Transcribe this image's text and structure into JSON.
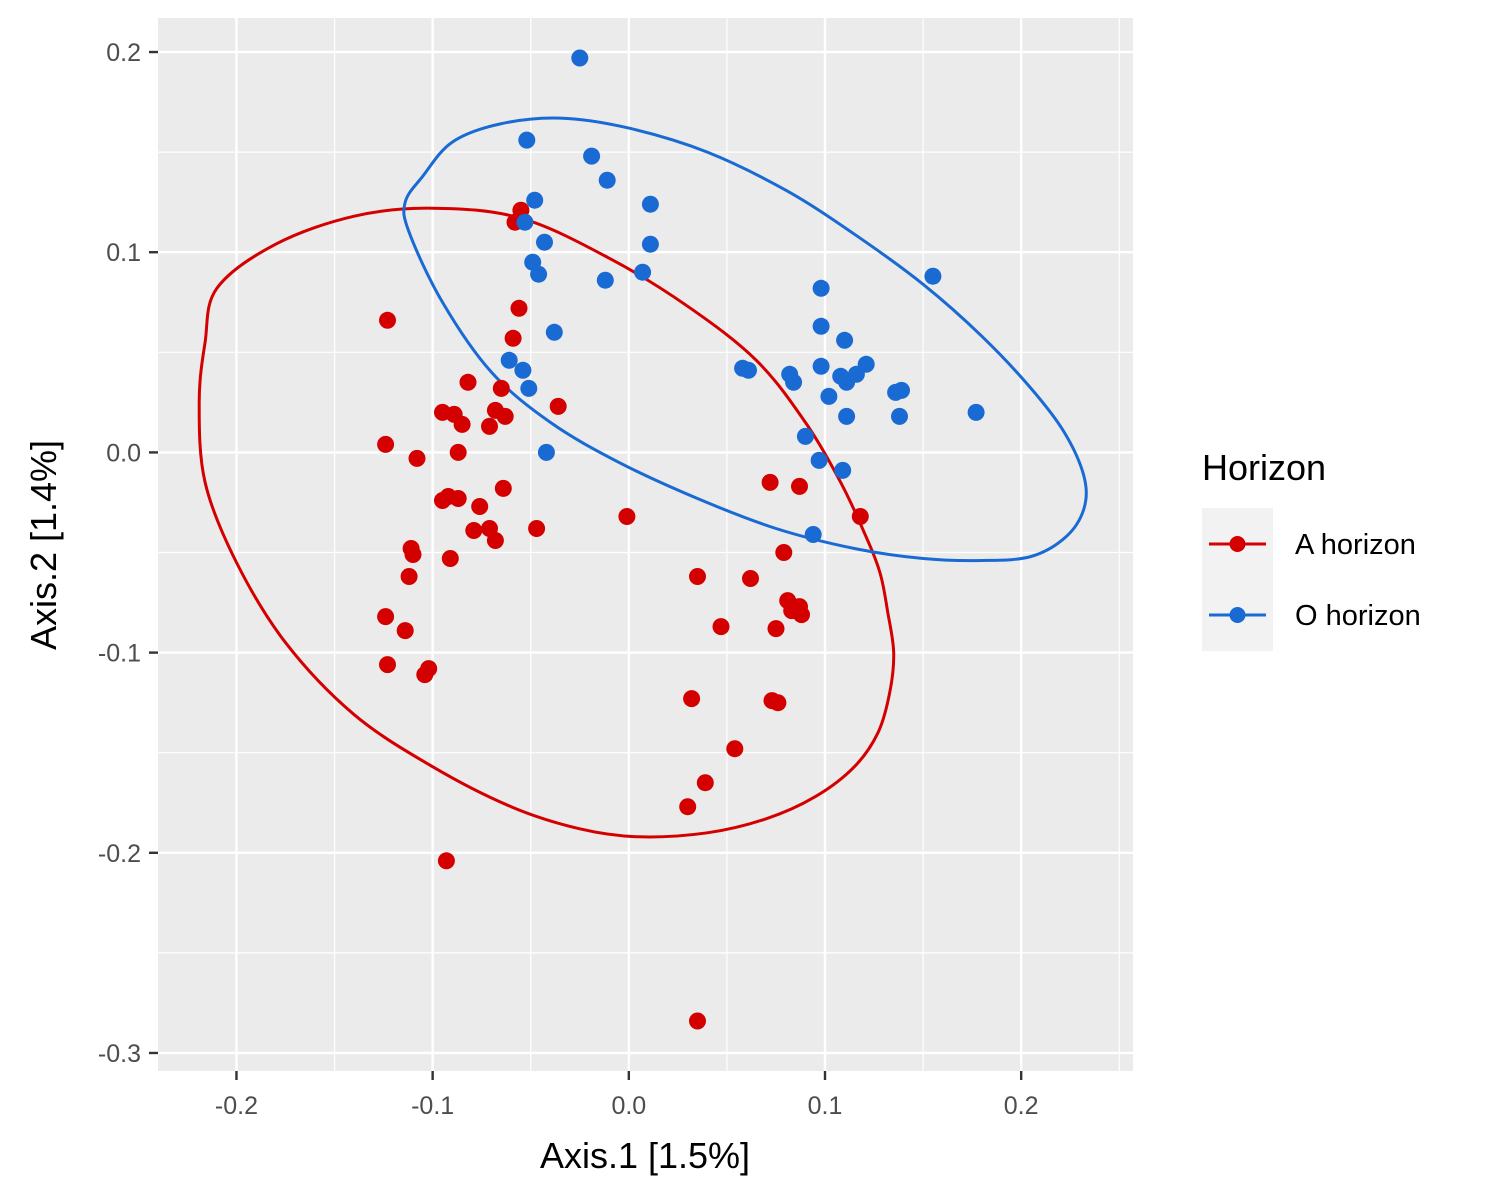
{
  "chart_data": {
    "type": "scatter",
    "xlabel": "Axis.1   [1.5%]",
    "ylabel": "Axis.2   [1.4%]",
    "xlim": [
      -0.24,
      0.257
    ],
    "ylim": [
      -0.309,
      0.217
    ],
    "x_ticks": [
      -0.2,
      -0.1,
      0.0,
      0.1,
      0.2
    ],
    "x_tick_labels": [
      "-0.2",
      "-0.1",
      "0.0",
      "0.1",
      "0.2"
    ],
    "y_ticks": [
      -0.3,
      -0.2,
      -0.1,
      0.0,
      0.1,
      0.2
    ],
    "y_tick_labels": [
      "-0.3",
      "-0.2",
      "-0.1",
      "0.0",
      "0.1",
      "0.2"
    ],
    "grid": true,
    "background": "#ebebeb",
    "legend": {
      "title": "Horizon",
      "position": "right"
    },
    "series": [
      {
        "name": "A horizon",
        "color": "#d40000",
        "points": [
          [
            -0.123,
            0.066
          ],
          [
            -0.124,
            0.004
          ],
          [
            -0.108,
            -0.003
          ],
          [
            -0.055,
            0.121
          ],
          [
            -0.058,
            0.115
          ],
          [
            -0.056,
            0.072
          ],
          [
            -0.059,
            0.057
          ],
          [
            -0.082,
            0.035
          ],
          [
            -0.065,
            0.032
          ],
          [
            -0.036,
            0.023
          ],
          [
            -0.095,
            0.02
          ],
          [
            -0.089,
            0.019
          ],
          [
            -0.068,
            0.021
          ],
          [
            -0.063,
            0.018
          ],
          [
            -0.085,
            0.014
          ],
          [
            -0.071,
            0.013
          ],
          [
            -0.087,
            0.0
          ],
          [
            -0.064,
            -0.018
          ],
          [
            -0.095,
            -0.024
          ],
          [
            -0.092,
            -0.022
          ],
          [
            -0.087,
            -0.023
          ],
          [
            -0.076,
            -0.027
          ],
          [
            -0.079,
            -0.039
          ],
          [
            -0.071,
            -0.038
          ],
          [
            -0.068,
            -0.044
          ],
          [
            -0.047,
            -0.038
          ],
          [
            -0.111,
            -0.048
          ],
          [
            -0.11,
            -0.051
          ],
          [
            -0.091,
            -0.053
          ],
          [
            -0.112,
            -0.062
          ],
          [
            -0.124,
            -0.082
          ],
          [
            -0.114,
            -0.089
          ],
          [
            -0.123,
            -0.106
          ],
          [
            -0.104,
            -0.111
          ],
          [
            -0.102,
            -0.108
          ],
          [
            -0.093,
            -0.204
          ],
          [
            -0.001,
            -0.032
          ],
          [
            0.035,
            -0.062
          ],
          [
            0.062,
            -0.063
          ],
          [
            0.047,
            -0.087
          ],
          [
            0.032,
            -0.123
          ],
          [
            0.054,
            -0.148
          ],
          [
            0.039,
            -0.165
          ],
          [
            0.03,
            -0.177
          ],
          [
            0.035,
            -0.284
          ],
          [
            0.072,
            -0.015
          ],
          [
            0.087,
            -0.017
          ],
          [
            0.118,
            -0.032
          ],
          [
            0.079,
            -0.05
          ],
          [
            0.081,
            -0.074
          ],
          [
            0.083,
            -0.079
          ],
          [
            0.087,
            -0.077
          ],
          [
            0.088,
            -0.081
          ],
          [
            0.075,
            -0.088
          ],
          [
            0.073,
            -0.124
          ],
          [
            0.076,
            -0.125
          ]
        ],
        "ellipse": [
          [
            -0.21,
            0.082
          ],
          [
            -0.18,
            0.104
          ],
          [
            -0.14,
            0.118
          ],
          [
            -0.1,
            0.122
          ],
          [
            -0.055,
            0.117
          ],
          [
            -0.01,
            0.097
          ],
          [
            0.03,
            0.073
          ],
          [
            0.065,
            0.046
          ],
          [
            0.09,
            0.015
          ],
          [
            0.108,
            -0.015
          ],
          [
            0.12,
            -0.04
          ],
          [
            0.128,
            -0.06
          ],
          [
            0.132,
            -0.08
          ],
          [
            0.135,
            -0.1
          ],
          [
            0.133,
            -0.12
          ],
          [
            0.127,
            -0.14
          ],
          [
            0.115,
            -0.157
          ],
          [
            0.095,
            -0.172
          ],
          [
            0.07,
            -0.183
          ],
          [
            0.04,
            -0.19
          ],
          [
            0.005,
            -0.192
          ],
          [
            -0.025,
            -0.188
          ],
          [
            -0.06,
            -0.177
          ],
          [
            -0.1,
            -0.157
          ],
          [
            -0.14,
            -0.131
          ],
          [
            -0.175,
            -0.095
          ],
          [
            -0.2,
            -0.055
          ],
          [
            -0.216,
            -0.015
          ],
          [
            -0.219,
            0.025
          ],
          [
            -0.216,
            0.055
          ],
          [
            -0.21,
            0.082
          ]
        ]
      },
      {
        "name": "O horizon",
        "color": "#1a6ad4",
        "points": [
          [
            -0.025,
            0.197
          ],
          [
            -0.052,
            0.156
          ],
          [
            -0.019,
            0.148
          ],
          [
            -0.011,
            0.136
          ],
          [
            -0.048,
            0.126
          ],
          [
            0.011,
            0.124
          ],
          [
            -0.053,
            0.115
          ],
          [
            -0.043,
            0.105
          ],
          [
            0.011,
            0.104
          ],
          [
            -0.049,
            0.095
          ],
          [
            -0.046,
            0.089
          ],
          [
            0.007,
            0.09
          ],
          [
            -0.012,
            0.086
          ],
          [
            -0.038,
            0.06
          ],
          [
            -0.061,
            0.046
          ],
          [
            -0.054,
            0.041
          ],
          [
            -0.051,
            0.032
          ],
          [
            -0.042,
            0.0
          ],
          [
            0.058,
            0.042
          ],
          [
            0.061,
            0.041
          ],
          [
            0.098,
            0.082
          ],
          [
            0.098,
            0.063
          ],
          [
            0.11,
            0.056
          ],
          [
            0.082,
            0.039
          ],
          [
            0.084,
            0.035
          ],
          [
            0.098,
            0.043
          ],
          [
            0.108,
            0.038
          ],
          [
            0.111,
            0.035
          ],
          [
            0.116,
            0.039
          ],
          [
            0.121,
            0.044
          ],
          [
            0.102,
            0.028
          ],
          [
            0.111,
            0.018
          ],
          [
            0.136,
            0.03
          ],
          [
            0.139,
            0.031
          ],
          [
            0.138,
            0.018
          ],
          [
            0.155,
            0.088
          ],
          [
            0.177,
            0.02
          ],
          [
            0.09,
            0.008
          ],
          [
            0.097,
            -0.004
          ],
          [
            0.109,
            -0.009
          ],
          [
            0.094,
            -0.041
          ]
        ],
        "ellipse": [
          [
            -0.105,
            0.138
          ],
          [
            -0.09,
            0.155
          ],
          [
            -0.066,
            0.164
          ],
          [
            -0.035,
            0.167
          ],
          [
            0.0,
            0.162
          ],
          [
            0.04,
            0.15
          ],
          [
            0.08,
            0.131
          ],
          [
            0.115,
            0.109
          ],
          [
            0.15,
            0.084
          ],
          [
            0.18,
            0.058
          ],
          [
            0.205,
            0.032
          ],
          [
            0.222,
            0.01
          ],
          [
            0.232,
            -0.012
          ],
          [
            0.232,
            -0.028
          ],
          [
            0.223,
            -0.042
          ],
          [
            0.205,
            -0.052
          ],
          [
            0.18,
            -0.054
          ],
          [
            0.15,
            -0.053
          ],
          [
            0.115,
            -0.048
          ],
          [
            0.075,
            -0.038
          ],
          [
            0.035,
            -0.023
          ],
          [
            -0.005,
            -0.005
          ],
          [
            -0.04,
            0.015
          ],
          [
            -0.07,
            0.04
          ],
          [
            -0.095,
            0.075
          ],
          [
            -0.112,
            0.11
          ],
          [
            -0.114,
            0.125
          ],
          [
            -0.105,
            0.138
          ]
        ]
      }
    ]
  }
}
